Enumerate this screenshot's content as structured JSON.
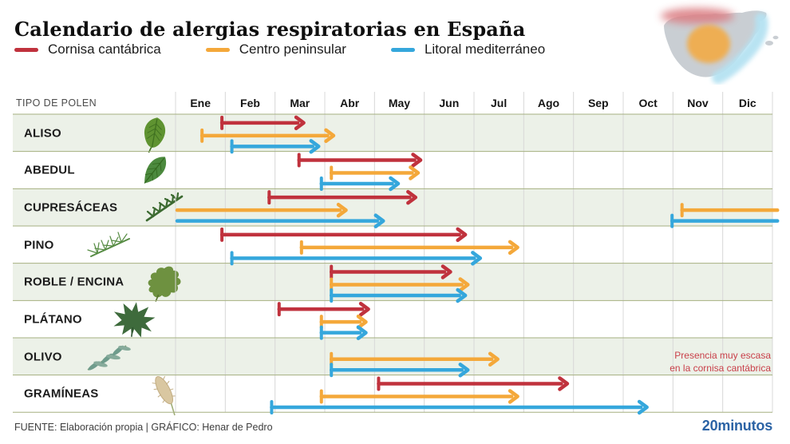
{
  "header": {
    "title": "Calendario de alergias respiratorias en España"
  },
  "legend": [
    {
      "label": "Cornisa cantábrica",
      "series": "cornisa"
    },
    {
      "label": "Centro peninsular",
      "series": "centro"
    },
    {
      "label": "Litoral mediterráneo",
      "series": "litoral"
    }
  ],
  "map": {
    "colors": {
      "silhouette": "#c9ced3",
      "cornisa_glow": "#dc8186",
      "centro_blob": "#f0ad4f",
      "litoral_band": "#b5e2f2"
    }
  },
  "table": {
    "type_label": "TIPO DE POLEN"
  },
  "chart_data": {
    "type": "gantt",
    "unit": "month (0 = inicio Ene, 12 = fin Dic)",
    "months": [
      "Ene",
      "Feb",
      "Mar",
      "Abr",
      "May",
      "Jun",
      "Jul",
      "Ago",
      "Sep",
      "Oct",
      "Nov",
      "Dic"
    ],
    "series_colors": {
      "cornisa": "#c0323d",
      "centro": "#f4a83a",
      "litoral": "#35a7dc"
    },
    "rows": [
      {
        "label": "ALISO",
        "spans": [
          {
            "series": "cornisa",
            "start": 0.9,
            "end": 2.6
          },
          {
            "series": "centro",
            "start": 0.5,
            "end": 3.2
          },
          {
            "series": "litoral",
            "start": 1.1,
            "end": 2.9
          }
        ]
      },
      {
        "label": "ABEDUL",
        "spans": [
          {
            "series": "cornisa",
            "start": 2.45,
            "end": 4.95
          },
          {
            "series": "centro",
            "start": 3.1,
            "end": 4.9
          },
          {
            "series": "litoral",
            "start": 2.9,
            "end": 4.5
          }
        ]
      },
      {
        "label": "CUPRESÁCEAS",
        "spans": [
          {
            "series": "cornisa",
            "start": 1.85,
            "end": 4.85
          },
          {
            "series": "centro",
            "start": 0,
            "end": 3.45,
            "cap_start": false
          },
          {
            "series": "centro",
            "start": 10.15,
            "end": 12.1,
            "arrow_end": false
          },
          {
            "series": "litoral",
            "start": 0,
            "end": 4.2,
            "cap_start": false
          },
          {
            "series": "litoral",
            "start": 9.95,
            "end": 12.1,
            "arrow_end": false
          }
        ]
      },
      {
        "label": "PINO",
        "spans": [
          {
            "series": "cornisa",
            "start": 0.9,
            "end": 5.85
          },
          {
            "series": "centro",
            "start": 2.5,
            "end": 6.9
          },
          {
            "series": "litoral",
            "start": 1.1,
            "end": 6.15
          }
        ]
      },
      {
        "label": "ROBLE / ENCINA",
        "spans": [
          {
            "series": "cornisa",
            "start": 3.1,
            "end": 5.55
          },
          {
            "series": "centro",
            "start": 3.1,
            "end": 5.9
          },
          {
            "series": "litoral",
            "start": 3.1,
            "end": 5.85
          }
        ]
      },
      {
        "label": "PLÁTANO",
        "spans": [
          {
            "series": "cornisa",
            "start": 2.05,
            "end": 3.9
          },
          {
            "series": "centro",
            "start": 2.9,
            "end": 3.85
          },
          {
            "series": "litoral",
            "start": 2.9,
            "end": 3.85
          }
        ]
      },
      {
        "label": "OLIVO",
        "spans": [
          {
            "series": "centro",
            "start": 3.1,
            "end": 6.5
          },
          {
            "series": "litoral",
            "start": 3.1,
            "end": 5.9
          }
        ]
      },
      {
        "label": "GRAMÍNEAS",
        "spans": [
          {
            "series": "cornisa",
            "start": 4.05,
            "end": 7.9
          },
          {
            "series": "centro",
            "start": 2.9,
            "end": 6.9
          },
          {
            "series": "litoral",
            "start": 1.9,
            "end": 9.5
          }
        ]
      }
    ],
    "note": {
      "row": "OLIVO",
      "line1": "Presencia muy escasa",
      "line2": "en la cornisa cantábrica",
      "color": "#c9404a"
    }
  },
  "footer": {
    "source": "FUENTE: Elaboración propia  |  GRÁFICO: Henar de Pedro",
    "logo": "20minutos"
  }
}
